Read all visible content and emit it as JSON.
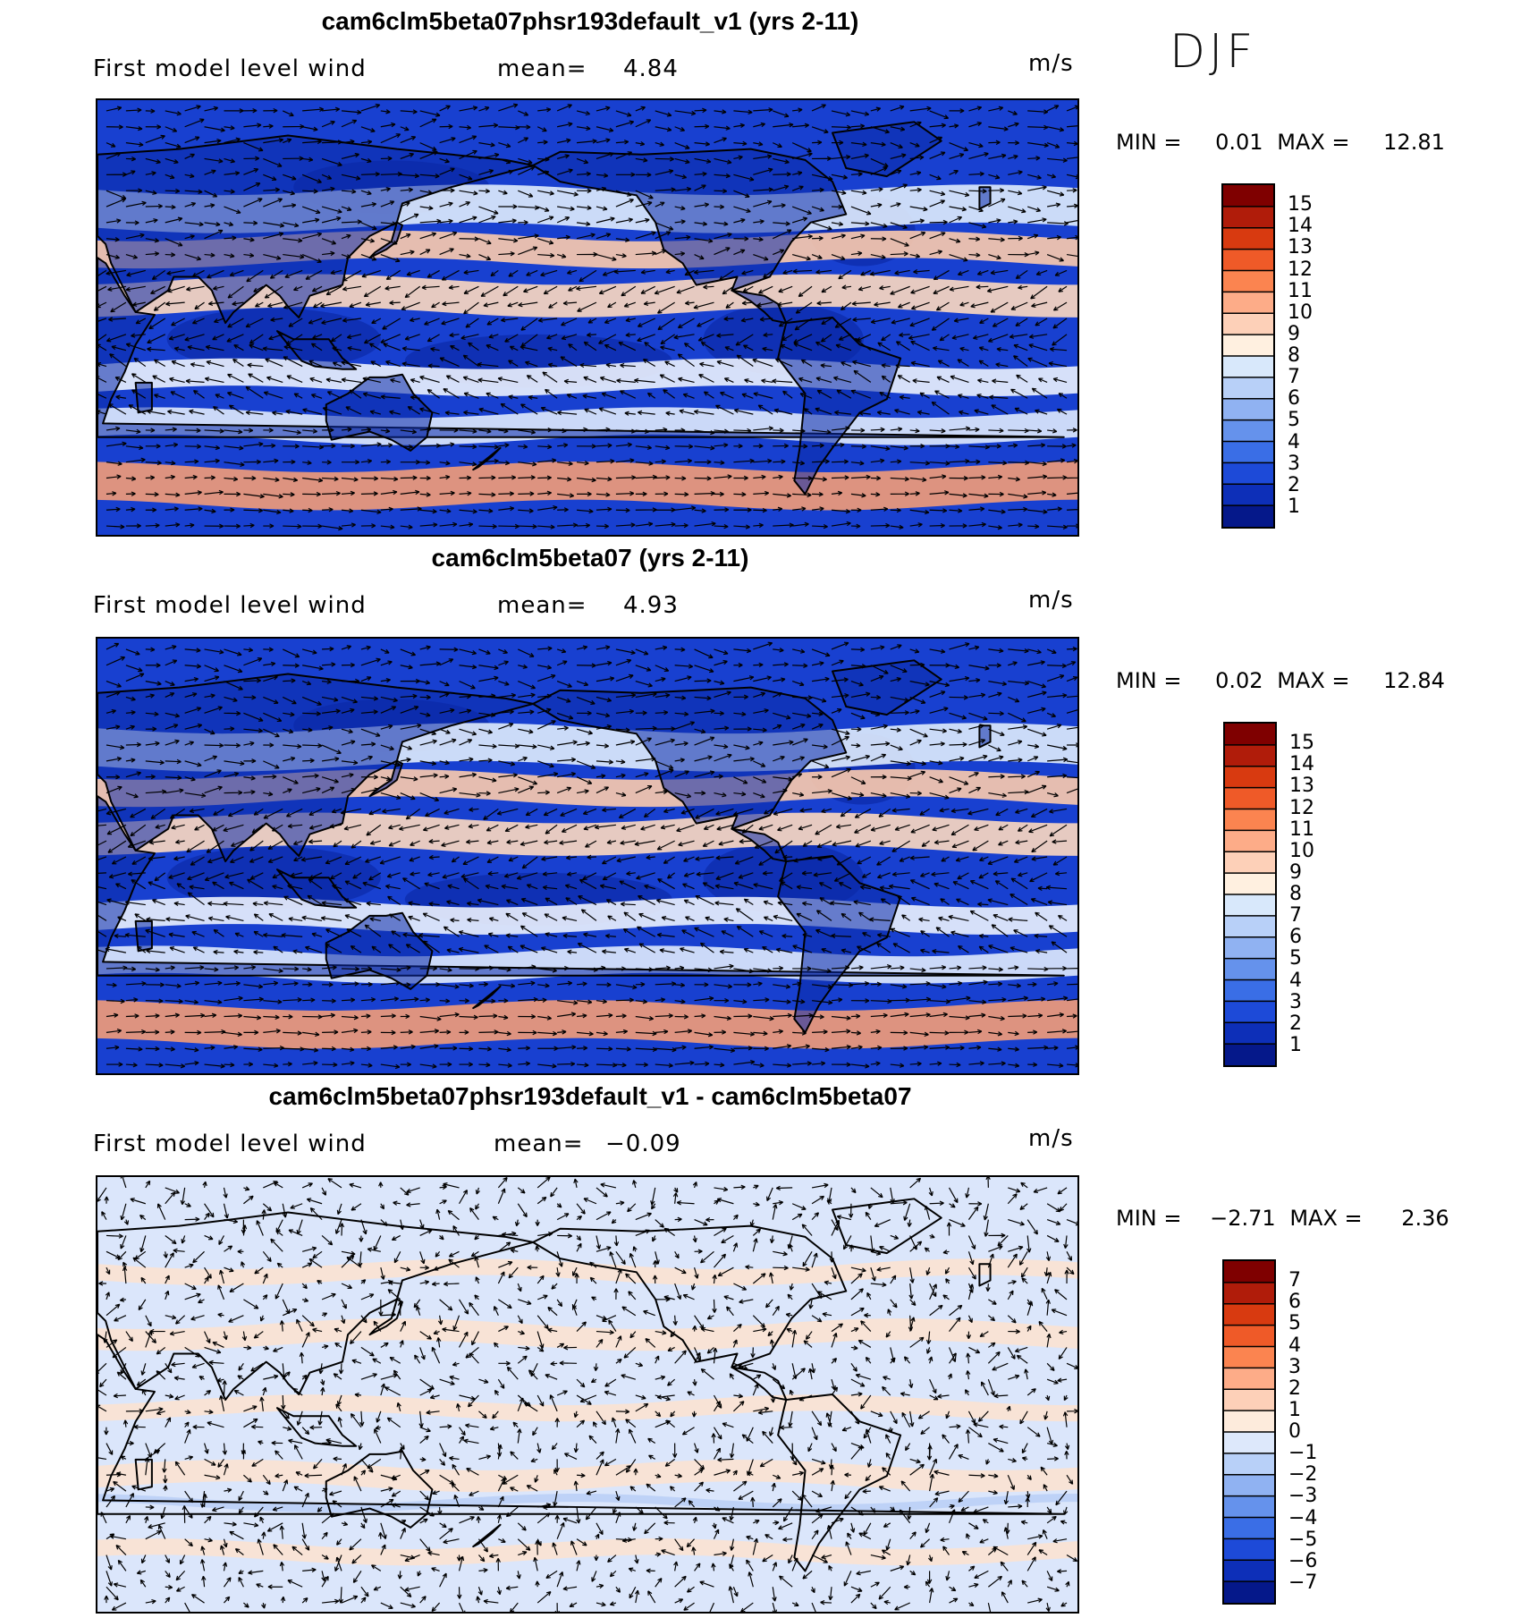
{
  "season": "DJF",
  "panels": [
    {
      "title": "cam6clm5beta07phsr193default_v1 (yrs 2-11)",
      "variable": "First model level wind",
      "mean_label": "mean=",
      "mean_value": "4.84",
      "units": "m/s",
      "min_label": "MIN =",
      "min_value": "0.01",
      "max_label": "MAX =",
      "max_value": "12.81",
      "colorbar": {
        "labels": [
          "15",
          "14",
          "13",
          "12",
          "11",
          "10",
          "9",
          "8",
          "7",
          "6",
          "5",
          "4",
          "3",
          "2",
          "1"
        ],
        "colors": [
          "#7f0000",
          "#b01c0a",
          "#d83a10",
          "#ef5a28",
          "#fb8450",
          "#fdac88",
          "#fdd0b8",
          "#fff0e0",
          "#d8e8fb",
          "#b8d0f8",
          "#90b2f2",
          "#6592ec",
          "#3a6ee6",
          "#1d4ad8",
          "#0d2fb8",
          "#05188a"
        ]
      },
      "field": {
        "background": "#1840d0",
        "bands": [
          {
            "lat": 50,
            "color": "#dbe8fb",
            "width": 14
          },
          {
            "lat": 35,
            "color": "#f7c8ad",
            "width": 10
          },
          {
            "lat": 18,
            "color": "#f9d6bf",
            "width": 12
          },
          {
            "lat": -12,
            "color": "#e7eefc",
            "width": 10
          },
          {
            "lat": -30,
            "color": "#dbe6fb",
            "width": 10
          },
          {
            "lat": -52,
            "color": "#ef9a78",
            "width": 14
          }
        ]
      }
    },
    {
      "title": "cam6clm5beta07 (yrs 2-11)",
      "variable": "First model level wind",
      "mean_label": "mean=",
      "mean_value": "4.93",
      "units": "m/s",
      "min_label": "MIN =",
      "min_value": "0.02",
      "max_label": "MAX =",
      "max_value": "12.84",
      "colorbar": {
        "labels": [
          "15",
          "14",
          "13",
          "12",
          "11",
          "10",
          "9",
          "8",
          "7",
          "6",
          "5",
          "4",
          "3",
          "2",
          "1"
        ],
        "colors": [
          "#7f0000",
          "#b01c0a",
          "#d83a10",
          "#ef5a28",
          "#fb8450",
          "#fdac88",
          "#fdd0b8",
          "#fff0e0",
          "#d8e8fb",
          "#b8d0f8",
          "#90b2f2",
          "#6592ec",
          "#3a6ee6",
          "#1d4ad8",
          "#0d2fb8",
          "#05188a"
        ]
      },
      "field": {
        "background": "#1840d0",
        "bands": [
          {
            "lat": 50,
            "color": "#dbe8fb",
            "width": 14
          },
          {
            "lat": 35,
            "color": "#f7c8ad",
            "width": 10
          },
          {
            "lat": 18,
            "color": "#f9d6bf",
            "width": 12
          },
          {
            "lat": -12,
            "color": "#e7eefc",
            "width": 10
          },
          {
            "lat": -30,
            "color": "#dbe6fb",
            "width": 10
          },
          {
            "lat": -52,
            "color": "#ef9a78",
            "width": 14
          }
        ]
      }
    },
    {
      "title": "cam6clm5beta07phsr193default_v1 - cam6clm5beta07",
      "variable": "First model level wind",
      "mean_label": "mean=",
      "mean_value": "−0.09",
      "units": "m/s",
      "min_label": "MIN =",
      "min_value": "−2.71",
      "max_label": "MAX =",
      "max_value": "2.36",
      "colorbar": {
        "labels": [
          "7",
          "6",
          "5",
          "4",
          "3",
          "2",
          "1",
          "0",
          "−1",
          "−2",
          "−3",
          "−4",
          "−5",
          "−6",
          "−7"
        ],
        "colors": [
          "#7f0000",
          "#b01c0a",
          "#d83a10",
          "#ef5a28",
          "#fb8450",
          "#fdac88",
          "#fdd0b8",
          "#fdebdc",
          "#dde8fb",
          "#b8d0f8",
          "#90b2f2",
          "#6592ec",
          "#3a6ee6",
          "#1d4ad8",
          "#0d2fb8",
          "#05188a"
        ]
      },
      "field": {
        "background": "#dbe6fb",
        "bands": [
          {
            "lat": 55,
            "color": "#fbe3d2",
            "width": 6
          },
          {
            "lat": 32,
            "color": "#fbe3d2",
            "width": 8
          },
          {
            "lat": 5,
            "color": "#fbe3d2",
            "width": 6
          },
          {
            "lat": -20,
            "color": "#fbe3d2",
            "width": 8
          },
          {
            "lat": -48,
            "color": "#fbe3d2",
            "width": 6
          },
          {
            "lat": -30,
            "color": "#bcd0f6",
            "width": 3
          }
        ]
      }
    }
  ]
}
